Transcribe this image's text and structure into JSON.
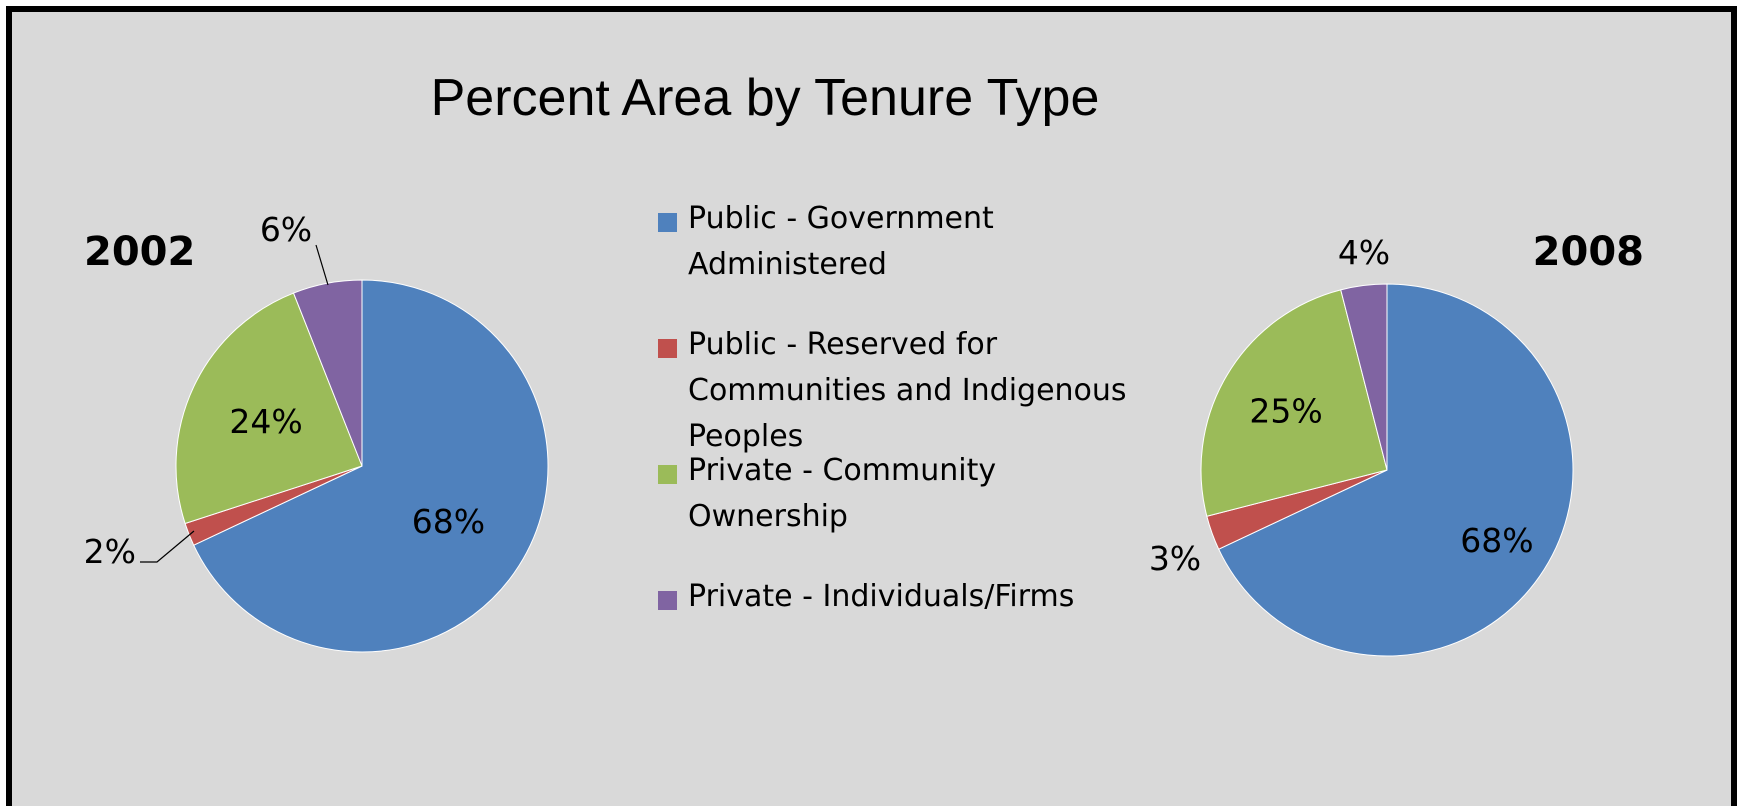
{
  "chart_data": [
    {
      "type": "pie",
      "title": "Percent Area by Tenure Type",
      "label": "2002",
      "categories": [
        "Public - Government Administered",
        "Public - Reserved for Communities and Indigenous Peoples",
        "Private - Community Ownership",
        "Private - Individuals/Firms"
      ],
      "values": [
        68,
        2,
        24,
        6
      ],
      "data_labels": [
        "68%",
        "2%",
        "24%",
        "6%"
      ],
      "colors": [
        "#4f81bd",
        "#c0504d",
        "#9bbb59",
        "#8064a2"
      ],
      "legend_position": "center"
    },
    {
      "type": "pie",
      "label": "2008",
      "categories": [
        "Public - Government Administered",
        "Public - Reserved for Communities and Indigenous Peoples",
        "Private - Community Ownership",
        "Private - Individuals/Firms"
      ],
      "values": [
        68,
        3,
        25,
        4
      ],
      "data_labels": [
        "68%",
        "3%",
        "25%",
        "4%"
      ],
      "colors": [
        "#4f81bd",
        "#c0504d",
        "#9bbb59",
        "#8064a2"
      ],
      "legend_position": "center"
    }
  ],
  "legend": [
    {
      "label_lines": [
        "Public - Government",
        "Administered"
      ],
      "color": "#4f81bd"
    },
    {
      "label_lines": [
        "Public - Reserved for",
        "Communities and Indigenous",
        "Peoples"
      ],
      "color": "#c0504d"
    },
    {
      "label_lines": [
        "Private - Community",
        "Ownership"
      ],
      "color": "#9bbb59"
    },
    {
      "label_lines": [
        "Private - Individuals/Firms"
      ],
      "color": "#8064a2"
    }
  ]
}
